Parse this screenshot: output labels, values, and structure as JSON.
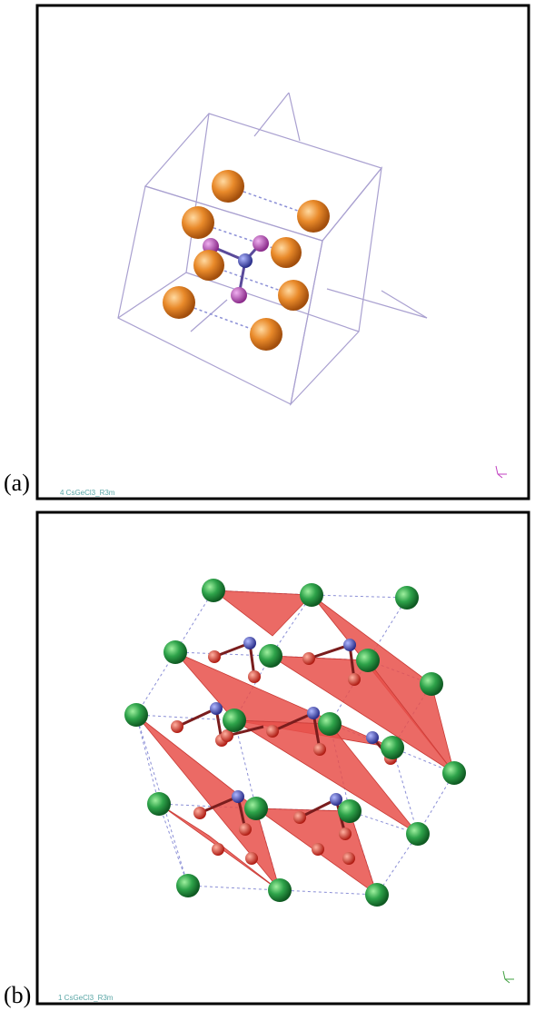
{
  "panels": [
    {
      "label": "(a)",
      "caption": "4 CsGeCl3_R3m"
    },
    {
      "label": "(b)",
      "caption": "1 CsGeCl3_R3m"
    }
  ]
}
